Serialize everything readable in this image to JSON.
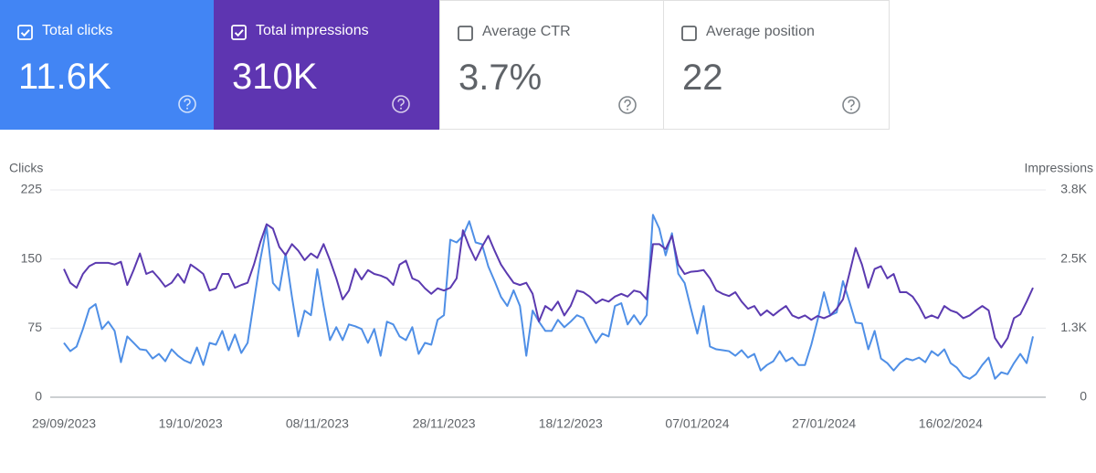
{
  "cards": [
    {
      "label": "Total clicks",
      "value": "11.6K",
      "checked": true,
      "color": "#4285f4"
    },
    {
      "label": "Total impressions",
      "value": "310K",
      "checked": true,
      "color": "#5e35b1"
    },
    {
      "label": "Average CTR",
      "value": "3.7%",
      "checked": false,
      "color": "#ffffff"
    },
    {
      "label": "Average position",
      "value": "22",
      "checked": false,
      "color": "#ffffff"
    }
  ],
  "chart_data": {
    "type": "line",
    "y_label": "Clicks",
    "y2_label": "Impressions",
    "categories": [
      "29/09/2023",
      null,
      null,
      null,
      null,
      null,
      null,
      null,
      null,
      null,
      null,
      null,
      null,
      null,
      null,
      null,
      null,
      null,
      null,
      null,
      "19/10/2023",
      null,
      null,
      null,
      null,
      null,
      null,
      null,
      null,
      null,
      null,
      null,
      null,
      null,
      null,
      null,
      null,
      null,
      null,
      null,
      "08/11/2023",
      null,
      null,
      null,
      null,
      null,
      null,
      null,
      null,
      null,
      null,
      null,
      null,
      null,
      null,
      null,
      null,
      null,
      null,
      null,
      "28/11/2023",
      null,
      null,
      null,
      null,
      null,
      null,
      null,
      null,
      null,
      null,
      null,
      null,
      null,
      null,
      null,
      null,
      null,
      null,
      null,
      "18/12/2023",
      null,
      null,
      null,
      null,
      null,
      null,
      null,
      null,
      null,
      null,
      null,
      null,
      null,
      null,
      null,
      null,
      null,
      null,
      null,
      "07/01/2024",
      null,
      null,
      null,
      null,
      null,
      null,
      null,
      null,
      null,
      null,
      null,
      null,
      null,
      null,
      null,
      null,
      null,
      null,
      null,
      "27/01/2024",
      null,
      null,
      null,
      null,
      null,
      null,
      null,
      null,
      null,
      null,
      null,
      null,
      null,
      null,
      null,
      null,
      null,
      null,
      null,
      "16/02/2024",
      null,
      null,
      null,
      null,
      null,
      null,
      null,
      null,
      null,
      null,
      null,
      null,
      null
    ],
    "series": [
      {
        "color": "#4f8fe6",
        "axis": "y",
        "values": [
          59,
          50,
          55,
          74,
          96,
          101,
          74,
          82,
          72,
          38,
          66,
          59,
          52,
          51,
          42,
          47,
          39,
          52,
          45,
          40,
          37,
          54,
          35,
          59,
          57,
          72,
          51,
          68,
          48,
          59,
          104,
          149,
          185,
          124,
          116,
          156,
          109,
          66,
          94,
          89,
          139,
          99,
          62,
          76,
          62,
          79,
          77,
          74,
          59,
          74,
          45,
          82,
          79,
          66,
          62,
          76,
          47,
          59,
          57,
          84,
          89,
          171,
          168,
          175,
          191,
          168,
          166,
          142,
          126,
          109,
          99,
          116,
          99,
          45,
          94,
          82,
          72,
          72,
          84,
          76,
          82,
          89,
          86,
          72,
          59,
          69,
          66,
          99,
          102,
          79,
          89,
          79,
          89,
          198,
          183,
          154,
          178,
          134,
          124,
          96,
          69,
          99,
          55,
          52,
          51,
          50,
          45,
          51,
          43,
          47,
          29,
          35,
          39,
          50,
          39,
          43,
          35,
          35,
          57,
          84,
          114,
          89,
          92,
          126,
          104,
          81,
          80,
          52,
          72,
          42,
          37,
          29,
          37,
          42,
          40,
          43,
          38,
          50,
          45,
          52,
          37,
          32,
          23,
          20,
          25,
          35,
          43,
          20,
          27,
          25,
          37,
          47,
          37,
          66
        ]
      },
      {
        "color": "#5b3ab0",
        "axis": "y2",
        "values": [
          2320,
          2070,
          1980,
          2230,
          2370,
          2430,
          2430,
          2430,
          2400,
          2450,
          2030,
          2300,
          2600,
          2230,
          2280,
          2150,
          2000,
          2070,
          2230,
          2070,
          2400,
          2320,
          2230,
          1930,
          1970,
          2230,
          2230,
          1980,
          2030,
          2070,
          2400,
          2800,
          3130,
          3050,
          2720,
          2570,
          2770,
          2650,
          2480,
          2600,
          2520,
          2770,
          2480,
          2150,
          1770,
          1930,
          2320,
          2130,
          2300,
          2230,
          2200,
          2150,
          2030,
          2400,
          2470,
          2150,
          2100,
          1970,
          1870,
          1970,
          1930,
          1980,
          2150,
          3020,
          2720,
          2480,
          2720,
          2920,
          2650,
          2400,
          2230,
          2070,
          2030,
          2070,
          1870,
          1370,
          1650,
          1570,
          1730,
          1480,
          1650,
          1930,
          1900,
          1820,
          1700,
          1770,
          1730,
          1820,
          1870,
          1820,
          1930,
          1900,
          1770,
          2770,
          2770,
          2680,
          2920,
          2400,
          2230,
          2270,
          2280,
          2300,
          2150,
          1930,
          1870,
          1830,
          1900,
          1730,
          1600,
          1650,
          1480,
          1570,
          1480,
          1570,
          1650,
          1480,
          1430,
          1480,
          1400,
          1470,
          1430,
          1480,
          1600,
          1770,
          2230,
          2700,
          2400,
          1980,
          2320,
          2370,
          2150,
          2230,
          1900,
          1900,
          1820,
          1650,
          1430,
          1480,
          1430,
          1650,
          1570,
          1530,
          1430,
          1480,
          1570,
          1650,
          1570,
          1070,
          900,
          1070,
          1430,
          1500,
          1730,
          1980
        ]
      }
    ],
    "ylim": [
      0,
      225
    ],
    "yticks": [
      0,
      75,
      150,
      225
    ],
    "y2lim": [
      0,
      3750
    ],
    "y2ticks": [
      0,
      {
        "value": 1250,
        "label": "1.3K"
      },
      {
        "value": 2500,
        "label": "2.5K"
      },
      {
        "value": 3750,
        "label": "3.8K"
      }
    ],
    "grid": true
  }
}
